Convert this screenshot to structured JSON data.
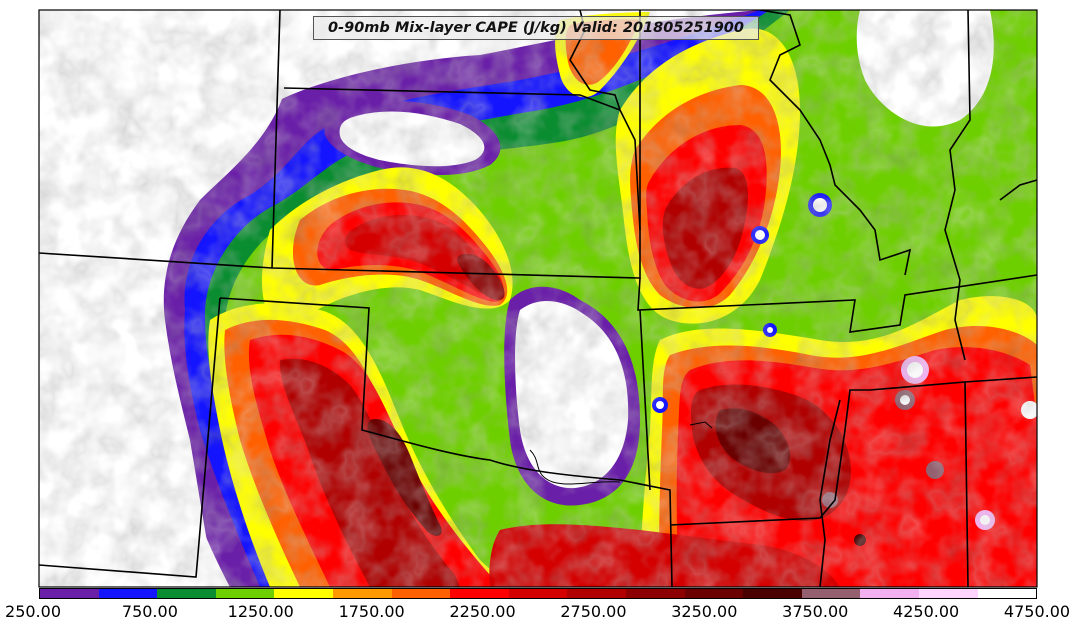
{
  "title": "0-90mb Mix-layer CAPE (J/kg) Valid: 201805251900",
  "colorbar": {
    "colors": [
      "#6a1fa8",
      "#1414ff",
      "#0a8c30",
      "#6ecf00",
      "#ffff00",
      "#ff9900",
      "#ff6000",
      "#ff0000",
      "#d40000",
      "#b00000",
      "#8c0000",
      "#6a0000",
      "#4a0000",
      "#946070",
      "#f2b0f0",
      "#ffd4ff",
      "#ffffff"
    ],
    "tick_labels": [
      "250.00",
      "750.00",
      "1250.00",
      "1750.00",
      "2250.00",
      "2750.00",
      "3250.00",
      "3750.00",
      "4250.00",
      "4750.00"
    ]
  }
}
